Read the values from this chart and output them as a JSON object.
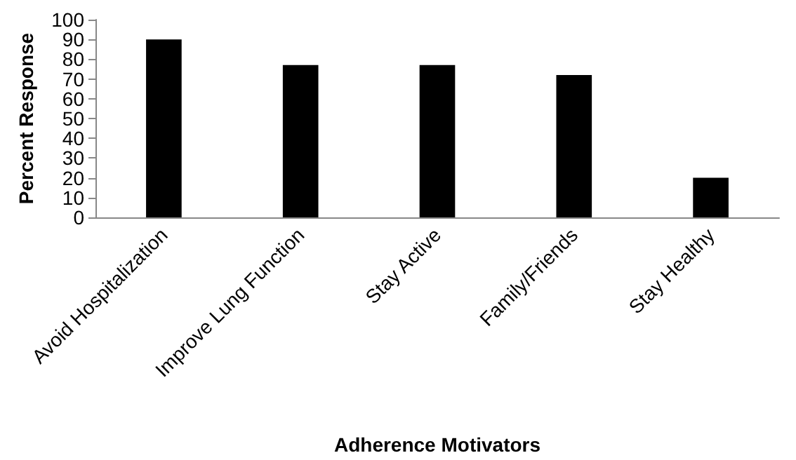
{
  "chart_data": {
    "type": "bar",
    "xlabel": "Adherence Motivators",
    "ylabel": "Percent Response",
    "categories": [
      "Avoid Hospitalization",
      "Improve Lung Function",
      "Stay Active",
      "Family/Friends",
      "Stay Healthy"
    ],
    "values": [
      90,
      77,
      77,
      72,
      20
    ],
    "color": "#000000",
    "ylim": [
      0,
      100
    ],
    "yticks": [
      0,
      10,
      20,
      30,
      40,
      50,
      60,
      70,
      80,
      90,
      100
    ]
  }
}
